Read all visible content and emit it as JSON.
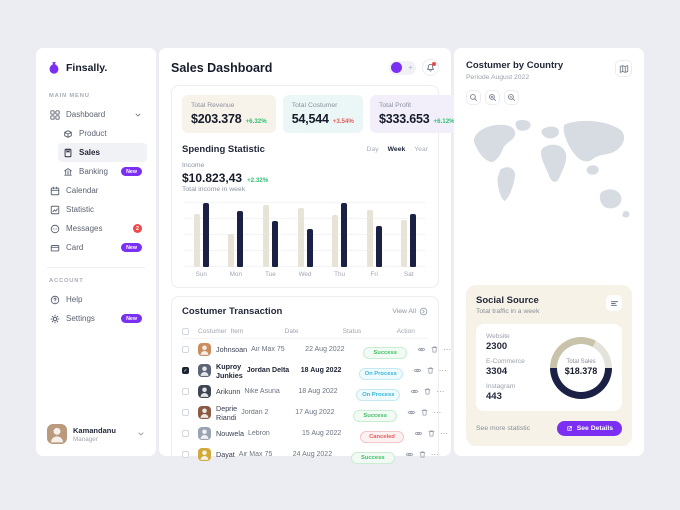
{
  "colors": {
    "accent": "#7b2ff2",
    "navy": "#1b2145",
    "beige": "#e7e3d6",
    "green": "#2fbf71",
    "red": "#e45b5b"
  },
  "sidebar": {
    "logo": "Finsally.",
    "main_menu_label": "MAIN MENU",
    "account_label": "ACCOUNT",
    "items": [
      {
        "label": "Dashboard",
        "icon": "grid-icon",
        "chevron": true
      },
      {
        "label": "Product",
        "icon": "product-icon",
        "indent": true
      },
      {
        "label": "Sales",
        "icon": "sales-icon",
        "indent": true,
        "active": true
      },
      {
        "label": "Banking",
        "icon": "bank-icon",
        "indent": true,
        "badge": "New"
      },
      {
        "label": "Calendar",
        "icon": "calendar-icon"
      },
      {
        "label": "Statistic",
        "icon": "statistic-icon"
      },
      {
        "label": "Messages",
        "icon": "messages-icon",
        "count": "2"
      },
      {
        "label": "Card",
        "icon": "card-icon",
        "badge": "New"
      }
    ],
    "account_items": [
      {
        "label": "Help",
        "icon": "help-icon"
      },
      {
        "label": "Settings",
        "icon": "gear-icon",
        "badge": "New"
      }
    ],
    "user": {
      "name": "Kamandanu",
      "role": "Manager",
      "avatar_color": "#b99a7c"
    }
  },
  "header": {
    "title": "Sales Dashboard",
    "controls": [
      "theme-toggle",
      "notification-bell"
    ]
  },
  "stats": [
    {
      "label": "Total Revenue",
      "value": "$203.378",
      "delta": "+6.32%",
      "trend": "up",
      "bg": "#f7f3ea"
    },
    {
      "label": "Total Costumer",
      "value": "54,544",
      "delta": "+3.54%",
      "trend": "down",
      "bg": "#ebf6f6"
    },
    {
      "label": "Total Profit",
      "value": "$333.653",
      "delta": "+6.12%",
      "trend": "up",
      "bg": "#f2effb"
    }
  ],
  "spending": {
    "title": "Spending Statistic",
    "tabs": [
      "Day",
      "Week",
      "Year"
    ],
    "active_tab": "Week",
    "income_label": "Income",
    "income_value": "$10.823,43",
    "income_delta": "+2.32%",
    "subtitle": "Total income in week"
  },
  "chart_data": [
    {
      "type": "bar",
      "title": "Spending Statistic - weekly income",
      "categories": [
        "Sun",
        "Mon",
        "Tue",
        "Wed",
        "Thu",
        "Fri",
        "Sat"
      ],
      "series": [
        {
          "name": "secondary",
          "color": "#e7e3d6",
          "values": [
            83,
            52,
            97,
            92,
            82,
            89,
            73
          ]
        },
        {
          "name": "income",
          "color": "#1b2145",
          "values": [
            100,
            87,
            72,
            59,
            100,
            64,
            83
          ]
        }
      ],
      "ylim": [
        0,
        100
      ],
      "grid": true,
      "legend": "none"
    },
    {
      "type": "pie",
      "title": "Social Source donut",
      "center_label": "Total Sales",
      "center_value": "$18.378",
      "segments": [
        {
          "color": "#c9c3ac",
          "pct": 8
        },
        {
          "color": "#e3e3db",
          "pct": 17
        },
        {
          "color": "#1b2145",
          "pct": 50
        },
        {
          "color": "#c9c3ac",
          "pct": 25
        }
      ],
      "related_values": {
        "Website": 2300,
        "E-Commerce": 3304,
        "Instagram": 443
      }
    }
  ],
  "transactions": {
    "title": "Costumer Transaction",
    "view_all": "View All",
    "columns": [
      "Costumer",
      "Item",
      "Date",
      "Status",
      "Action"
    ],
    "action_icons": [
      "eye-icon",
      "trash-icon",
      "more-icon"
    ],
    "rows": [
      {
        "name": "Johnsoan",
        "item": "Air Max 75",
        "date": "22 Aug 2022",
        "status": "Success",
        "checked": false,
        "avatar_color": "#c98d5f"
      },
      {
        "name": "Kuproy Junkies",
        "item": "Jordan Delta",
        "date": "18 Aug 2022",
        "status": "On Process",
        "checked": true,
        "avatar_color": "#5c6475"
      },
      {
        "name": "Arikunn",
        "item": "Nike Asuna",
        "date": "18 Aug 2022",
        "status": "On Process",
        "checked": false,
        "avatar_color": "#3f4651"
      },
      {
        "name": "Deprie Riandi",
        "item": "Jordan 2",
        "date": "17 Aug 2022",
        "status": "Success",
        "checked": false,
        "avatar_color": "#8a5a44"
      },
      {
        "name": "Nouwela",
        "item": "Lebron",
        "date": "15 Aug 2022",
        "status": "Canceled",
        "checked": false,
        "avatar_color": "#9aa3b2"
      },
      {
        "name": "Dayat",
        "item": "Air Max 75",
        "date": "24 Aug 2022",
        "status": "Success",
        "checked": false,
        "avatar_color": "#d2a93c"
      }
    ]
  },
  "country": {
    "title": "Costumer by Country",
    "subtitle": "Periode August 2022",
    "controls": [
      "search-icon",
      "zoom-in-icon",
      "zoom-out-icon"
    ],
    "corner_icon": "map-icon"
  },
  "social": {
    "title": "Social Source",
    "subtitle": "Total traffic in a week",
    "corner_icon": "stats-lines-icon",
    "stats": [
      {
        "label": "Website",
        "value": "2300"
      },
      {
        "label": "E-Commerce",
        "value": "3304"
      },
      {
        "label": "Instagram",
        "value": "443"
      }
    ],
    "donut": {
      "center_label": "Total Sales",
      "center_value": "$18.378"
    },
    "footer_link": "See more statistic",
    "button": "See Details"
  }
}
